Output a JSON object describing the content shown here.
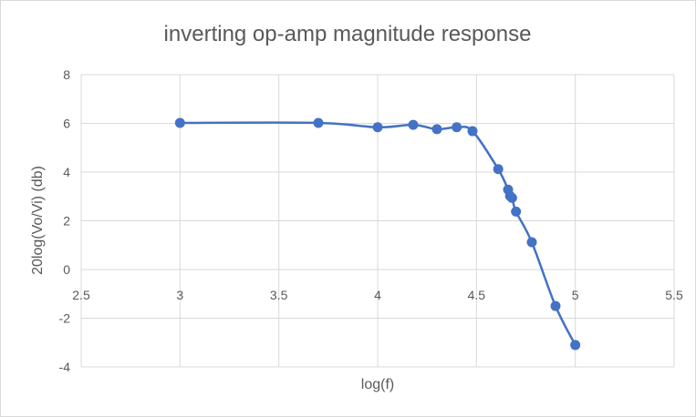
{
  "chart_data": {
    "type": "scatter",
    "title": "inverting op-amp magnitude response",
    "xlabel": "log(f)",
    "ylabel": "20log(Vo/Vi) (db)",
    "xlim": [
      2.5,
      5.5
    ],
    "ylim": [
      -4,
      8
    ],
    "x_ticks": [
      "2.5",
      "3",
      "3.5",
      "4",
      "4.5",
      "5",
      "5.5"
    ],
    "y_ticks": [
      "8",
      "6",
      "4",
      "2",
      "0",
      "-2",
      "-4"
    ],
    "grid": "vertical and horizontal major",
    "legend": "none",
    "smooth_line": true,
    "series": [
      {
        "color": "#4472c4",
        "points": [
          [
            3.0,
            6.02
          ],
          [
            3.7,
            6.02
          ],
          [
            4.0,
            5.84
          ],
          [
            4.18,
            5.94
          ],
          [
            4.3,
            5.76
          ],
          [
            4.4,
            5.84
          ],
          [
            4.48,
            5.68
          ],
          [
            4.61,
            4.12
          ],
          [
            4.66,
            3.28
          ],
          [
            4.67,
            3.02
          ],
          [
            4.68,
            2.94
          ],
          [
            4.7,
            2.38
          ],
          [
            4.78,
            1.12
          ],
          [
            4.9,
            -1.5
          ],
          [
            5.0,
            -3.1
          ]
        ]
      }
    ]
  }
}
